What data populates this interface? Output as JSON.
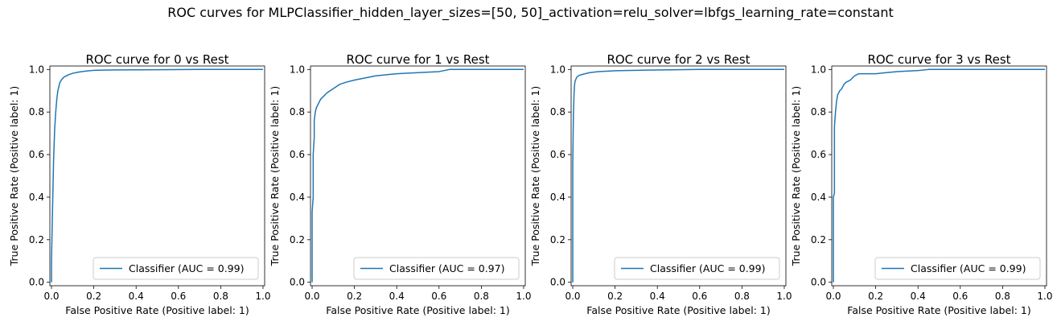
{
  "figure": {
    "suptitle": "ROC curves for MLPClassifier_hidden_layer_sizes=[50, 50]_activation=relu_solver=lbfgs_learning_rate=constant"
  },
  "chart_data": [
    {
      "type": "line",
      "title": "ROC curve for 0 vs Rest",
      "xlabel": "False Positive Rate (Positive label: 1)",
      "ylabel": "True Positive Rate (Positive label: 1)",
      "xlim": [
        0.0,
        1.0
      ],
      "ylim": [
        0.0,
        1.0
      ],
      "xticks": [
        "0.0",
        "0.2",
        "0.4",
        "0.6",
        "0.8",
        "1.0"
      ],
      "yticks": [
        "0.0",
        "0.2",
        "0.4",
        "0.6",
        "0.8",
        "1.0"
      ],
      "grid": false,
      "legend": "lower-right",
      "color": "#1f77b4",
      "series": [
        {
          "name": "Classifier (AUC = 0.99)",
          "x": [
            0.0,
            0.0,
            0.005,
            0.01,
            0.015,
            0.02,
            0.025,
            0.03,
            0.035,
            0.04,
            0.05,
            0.06,
            0.08,
            0.1,
            0.13,
            0.16,
            0.2,
            0.3,
            0.5,
            0.7,
            1.0
          ],
          "y": [
            0.0,
            0.1,
            0.35,
            0.58,
            0.72,
            0.8,
            0.86,
            0.9,
            0.92,
            0.94,
            0.955,
            0.965,
            0.975,
            0.982,
            0.988,
            0.992,
            0.996,
            0.998,
            0.999,
            1.0,
            1.0
          ]
        }
      ]
    },
    {
      "type": "line",
      "title": "ROC curve for 1 vs Rest",
      "xlabel": "False Positive Rate (Positive label: 1)",
      "ylabel": "True Positive Rate (Positive label: 1)",
      "xlim": [
        0.0,
        1.0
      ],
      "ylim": [
        0.0,
        1.0
      ],
      "xticks": [
        "0.0",
        "0.2",
        "0.4",
        "0.6",
        "0.8",
        "1.0"
      ],
      "yticks": [
        "0.0",
        "0.2",
        "0.4",
        "0.6",
        "0.8",
        "1.0"
      ],
      "grid": false,
      "legend": "lower-right",
      "color": "#1f77b4",
      "series": [
        {
          "name": "Classifier (AUC = 0.97)",
          "x": [
            0.0,
            0.0,
            0.005,
            0.005,
            0.01,
            0.01,
            0.015,
            0.02,
            0.03,
            0.04,
            0.05,
            0.07,
            0.1,
            0.13,
            0.16,
            0.2,
            0.25,
            0.3,
            0.35,
            0.4,
            0.5,
            0.6,
            0.65,
            1.0
          ],
          "y": [
            0.0,
            0.33,
            0.4,
            0.6,
            0.68,
            0.76,
            0.8,
            0.82,
            0.84,
            0.86,
            0.87,
            0.89,
            0.91,
            0.93,
            0.94,
            0.95,
            0.96,
            0.97,
            0.975,
            0.98,
            0.985,
            0.99,
            1.0,
            1.0
          ]
        }
      ]
    },
    {
      "type": "line",
      "title": "ROC curve for 2 vs Rest",
      "xlabel": "False Positive Rate (Positive label: 1)",
      "ylabel": "True Positive Rate (Positive label: 1)",
      "xlim": [
        0.0,
        1.0
      ],
      "ylim": [
        0.0,
        1.0
      ],
      "xticks": [
        "0.0",
        "0.2",
        "0.4",
        "0.6",
        "0.8",
        "1.0"
      ],
      "yticks": [
        "0.0",
        "0.2",
        "0.4",
        "0.6",
        "0.8",
        "1.0"
      ],
      "grid": false,
      "legend": "lower-right",
      "color": "#1f77b4",
      "series": [
        {
          "name": "Classifier (AUC = 0.99)",
          "x": [
            0.0,
            0.0,
            0.003,
            0.006,
            0.008,
            0.01,
            0.015,
            0.02,
            0.03,
            0.05,
            0.08,
            0.12,
            0.2,
            0.35,
            0.6,
            1.0
          ],
          "y": [
            0.0,
            0.55,
            0.78,
            0.88,
            0.92,
            0.94,
            0.955,
            0.965,
            0.972,
            0.978,
            0.985,
            0.99,
            0.994,
            0.997,
            1.0,
            1.0
          ]
        }
      ]
    },
    {
      "type": "line",
      "title": "ROC curve for 3 vs Rest",
      "xlabel": "False Positive Rate (Positive label: 1)",
      "ylabel": "True Positive Rate (Positive label: 1)",
      "xlim": [
        0.0,
        1.0
      ],
      "ylim": [
        0.0,
        1.0
      ],
      "xticks": [
        "0.0",
        "0.2",
        "0.4",
        "0.6",
        "0.8",
        "1.0"
      ],
      "yticks": [
        "0.0",
        "0.2",
        "0.4",
        "0.6",
        "0.8",
        "1.0"
      ],
      "grid": false,
      "legend": "lower-right",
      "color": "#1f77b4",
      "series": [
        {
          "name": "Classifier (AUC = 0.99)",
          "x": [
            0.0,
            0.0,
            0.005,
            0.005,
            0.01,
            0.015,
            0.02,
            0.03,
            0.04,
            0.05,
            0.06,
            0.08,
            0.1,
            0.12,
            0.2,
            0.25,
            0.3,
            0.4,
            0.45,
            1.0
          ],
          "y": [
            0.0,
            0.4,
            0.42,
            0.73,
            0.8,
            0.85,
            0.88,
            0.9,
            0.91,
            0.93,
            0.94,
            0.95,
            0.97,
            0.98,
            0.98,
            0.985,
            0.99,
            0.995,
            1.0,
            1.0
          ]
        }
      ]
    }
  ]
}
